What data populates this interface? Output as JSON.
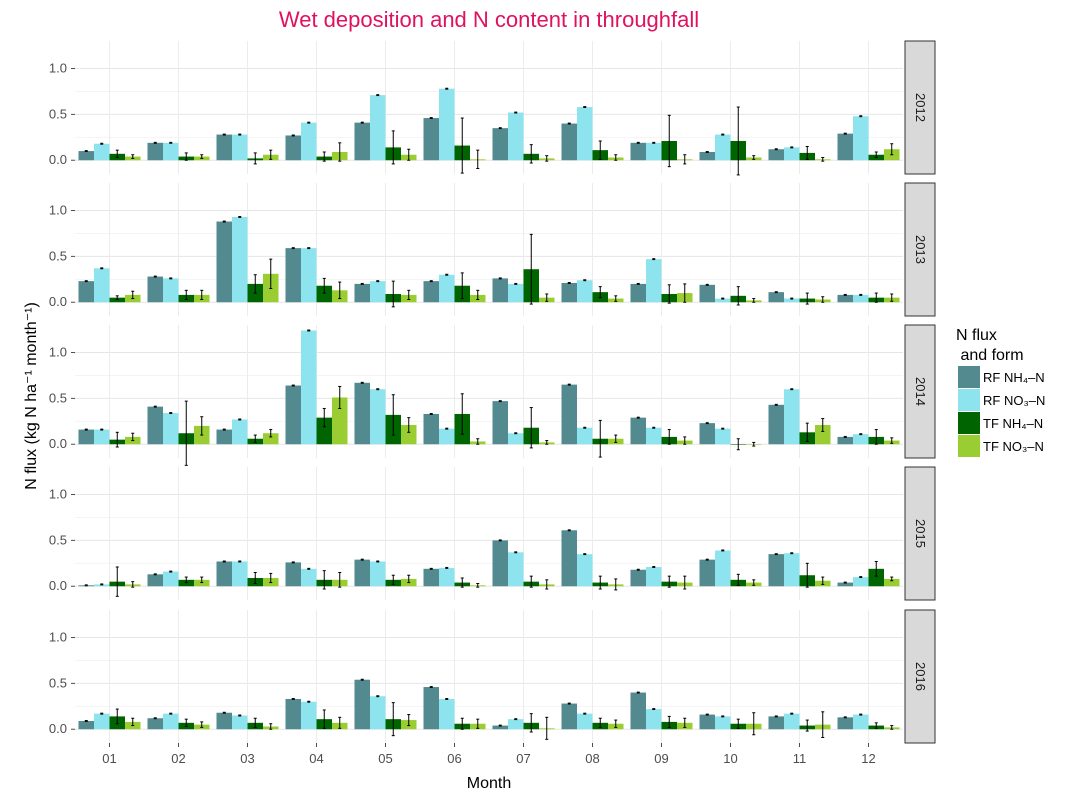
{
  "chart_data": {
    "type": "bar",
    "title": "Wet deposition and N content in throughfall",
    "xlabel": "Month",
    "ylabel": "N flux  (kg N ha⁻¹ month⁻¹)",
    "ylim": [
      -0.15,
      1.3
    ],
    "yticks": [
      0.0,
      0.5,
      1.0
    ],
    "ytick_labels": [
      "0.0",
      "0.5",
      "1.0"
    ],
    "categories": [
      "01",
      "02",
      "03",
      "04",
      "05",
      "06",
      "07",
      "08",
      "09",
      "10",
      "11",
      "12"
    ],
    "grid": true,
    "legend": {
      "title_line1": "N flux",
      "title_line2": " and form",
      "position": "right"
    },
    "series": [
      {
        "key": "rfnh4",
        "label": "RF NH₄–N",
        "color": "#528a8f"
      },
      {
        "key": "rfno3",
        "label": "RF NO₃–N",
        "color": "#8ee4ee"
      },
      {
        "key": "tfnh4",
        "label": "TF NH₄–N",
        "color": "#006400"
      },
      {
        "key": "tfno3",
        "label": "TF NO₃–N",
        "color": "#9acd32"
      }
    ],
    "panels": [
      {
        "year": "2012",
        "rfnh4": [
          0.1,
          0.19,
          0.28,
          0.27,
          0.41,
          0.46,
          0.35,
          0.4,
          0.19,
          0.09,
          0.12,
          0.29
        ],
        "rfno3": [
          0.18,
          0.19,
          0.28,
          0.41,
          0.71,
          0.78,
          0.52,
          0.58,
          0.19,
          0.28,
          0.14,
          0.48
        ],
        "tfnh4": [
          0.07,
          0.04,
          0.02,
          0.04,
          0.14,
          0.16,
          0.07,
          0.11,
          0.21,
          0.21,
          0.08,
          0.06
        ],
        "tfno3": [
          0.04,
          0.04,
          0.06,
          0.09,
          0.06,
          0.01,
          0.02,
          0.03,
          0.01,
          0.03,
          0.01,
          0.12
        ],
        "tferr_nh4": [
          0.04,
          0.04,
          0.06,
          0.05,
          0.18,
          0.3,
          0.1,
          0.1,
          0.28,
          0.37,
          0.07,
          0.03
        ],
        "tferr_no3": [
          0.02,
          0.02,
          0.05,
          0.1,
          0.06,
          0.1,
          0.03,
          0.03,
          0.05,
          0.02,
          0.02,
          0.06
        ]
      },
      {
        "year": "2013",
        "rfnh4": [
          0.23,
          0.28,
          0.88,
          0.59,
          0.2,
          0.23,
          0.26,
          0.21,
          0.2,
          0.19,
          0.11,
          0.08
        ],
        "rfno3": [
          0.37,
          0.26,
          0.93,
          0.59,
          0.23,
          0.3,
          0.2,
          0.24,
          0.47,
          0.04,
          0.04,
          0.08
        ],
        "tfnh4": [
          0.05,
          0.08,
          0.2,
          0.18,
          0.09,
          0.18,
          0.36,
          0.11,
          0.09,
          0.07,
          0.04,
          0.05
        ],
        "tfno3": [
          0.08,
          0.08,
          0.31,
          0.13,
          0.08,
          0.08,
          0.05,
          0.04,
          0.1,
          0.02,
          0.03,
          0.05
        ],
        "tferr_nh4": [
          0.02,
          0.05,
          0.1,
          0.08,
          0.14,
          0.14,
          0.38,
          0.06,
          0.1,
          0.1,
          0.06,
          0.05
        ],
        "tferr_no3": [
          0.04,
          0.05,
          0.16,
          0.09,
          0.05,
          0.05,
          0.04,
          0.03,
          0.1,
          0.02,
          0.03,
          0.04
        ]
      },
      {
        "year": "2014",
        "rfnh4": [
          0.16,
          0.41,
          0.16,
          0.64,
          0.67,
          0.33,
          0.47,
          0.65,
          0.29,
          0.23,
          0.43,
          0.08
        ],
        "rfno3": [
          0.16,
          0.34,
          0.27,
          1.24,
          0.6,
          0.17,
          0.12,
          0.18,
          0.18,
          0.17,
          0.6,
          0.11
        ],
        "tfnh4": [
          0.05,
          0.12,
          0.06,
          0.29,
          0.32,
          0.33,
          0.18,
          0.06,
          0.08,
          0.0,
          0.13,
          0.08
        ],
        "tfno3": [
          0.08,
          0.2,
          0.12,
          0.51,
          0.21,
          0.03,
          0.02,
          0.06,
          0.04,
          0.0,
          0.21,
          0.04
        ],
        "tferr_nh4": [
          0.08,
          0.35,
          0.04,
          0.1,
          0.22,
          0.22,
          0.22,
          0.2,
          0.08,
          0.06,
          0.1,
          0.08
        ],
        "tferr_no3": [
          0.04,
          0.1,
          0.04,
          0.12,
          0.08,
          0.03,
          0.02,
          0.04,
          0.04,
          0.02,
          0.07,
          0.03
        ]
      },
      {
        "year": "2015",
        "rfnh4": [
          0.01,
          0.13,
          0.27,
          0.26,
          0.29,
          0.19,
          0.5,
          0.61,
          0.18,
          0.29,
          0.35,
          0.04
        ],
        "rfno3": [
          0.02,
          0.16,
          0.27,
          0.19,
          0.27,
          0.2,
          0.37,
          0.35,
          0.21,
          0.39,
          0.36,
          0.1
        ],
        "tfnh4": [
          0.05,
          0.07,
          0.09,
          0.07,
          0.07,
          0.04,
          0.05,
          0.04,
          0.05,
          0.07,
          0.12,
          0.19
        ],
        "tfno3": [
          0.02,
          0.07,
          0.09,
          0.07,
          0.08,
          0.01,
          0.02,
          0.02,
          0.04,
          0.04,
          0.06,
          0.08
        ],
        "tferr_nh4": [
          0.16,
          0.03,
          0.06,
          0.1,
          0.05,
          0.05,
          0.06,
          0.07,
          0.06,
          0.06,
          0.13,
          0.08
        ],
        "tferr_no3": [
          0.03,
          0.03,
          0.05,
          0.08,
          0.04,
          0.02,
          0.05,
          0.06,
          0.07,
          0.03,
          0.04,
          0.02
        ]
      },
      {
        "year": "2016",
        "rfnh4": [
          0.09,
          0.12,
          0.18,
          0.33,
          0.54,
          0.46,
          0.04,
          0.28,
          0.4,
          0.16,
          0.14,
          0.13
        ],
        "rfno3": [
          0.17,
          0.17,
          0.15,
          0.3,
          0.36,
          0.33,
          0.11,
          0.17,
          0.22,
          0.14,
          0.17,
          0.16
        ],
        "tfnh4": [
          0.14,
          0.07,
          0.07,
          0.11,
          0.11,
          0.06,
          0.07,
          0.07,
          0.08,
          0.06,
          0.04,
          0.04
        ],
        "tfno3": [
          0.08,
          0.05,
          0.03,
          0.07,
          0.1,
          0.06,
          0.01,
          0.06,
          0.07,
          0.06,
          0.05,
          0.02
        ],
        "tferr_nh4": [
          0.08,
          0.04,
          0.05,
          0.1,
          0.18,
          0.06,
          0.1,
          0.05,
          0.06,
          0.05,
          0.06,
          0.03
        ],
        "tferr_no3": [
          0.04,
          0.03,
          0.03,
          0.06,
          0.06,
          0.05,
          0.12,
          0.04,
          0.05,
          0.12,
          0.14,
          0.02
        ]
      }
    ]
  }
}
